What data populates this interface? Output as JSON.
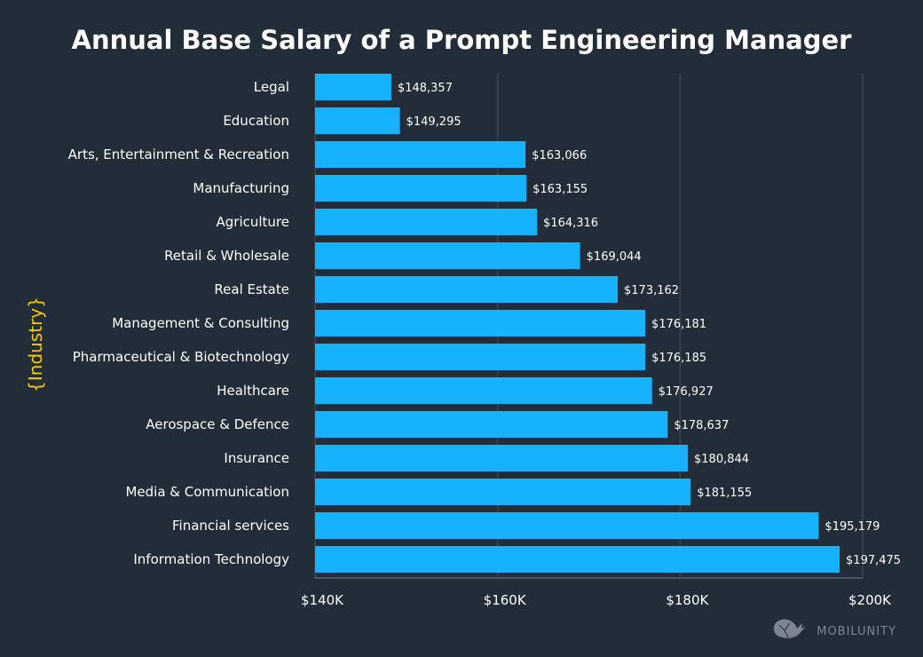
{
  "chart_data": {
    "type": "bar",
    "orientation": "horizontal",
    "title": "Annual Base Salary of a Prompt Engineering Manager",
    "xlabel": "",
    "ylabel": "{Industry}",
    "xlim": [
      140000,
      200000
    ],
    "xticks": [
      140000,
      160000,
      180000,
      200000
    ],
    "xtick_labels": [
      "$140K",
      "$160K",
      "$180K",
      "$200K"
    ],
    "grid": "vertical",
    "categories": [
      "Legal",
      "Education",
      "Arts, Entertainment & Recreation",
      "Manufacturing",
      "Agriculture",
      "Retail & Wholesale",
      "Real Estate",
      "Management & Consulting",
      "Pharmaceutical & Biotechnology",
      "Healthcare",
      "Aerospace & Defence",
      "Insurance",
      "Media & Communication",
      "Financial services",
      "Information Technology"
    ],
    "values": [
      148357,
      149295,
      163066,
      163155,
      164316,
      169044,
      173162,
      176181,
      176185,
      176927,
      178637,
      180844,
      181155,
      195179,
      197475
    ],
    "value_labels": [
      "$148,357",
      "$149,295",
      "$163,066",
      "$163,155",
      "$164,316",
      "$169,044",
      "$173,162",
      "$176,181",
      "$176,185",
      "$176,927",
      "$178,637",
      "$180,844",
      "$181,155",
      "$195,179",
      "$197,475"
    ],
    "colors": {
      "bar": "#17b2fd",
      "background": "#232d3a",
      "ylabel": "#f5c800",
      "grid": "#3a4452"
    }
  },
  "watermark": {
    "text": "MOBILUNITY",
    "icon": "whale-logo-icon"
  }
}
